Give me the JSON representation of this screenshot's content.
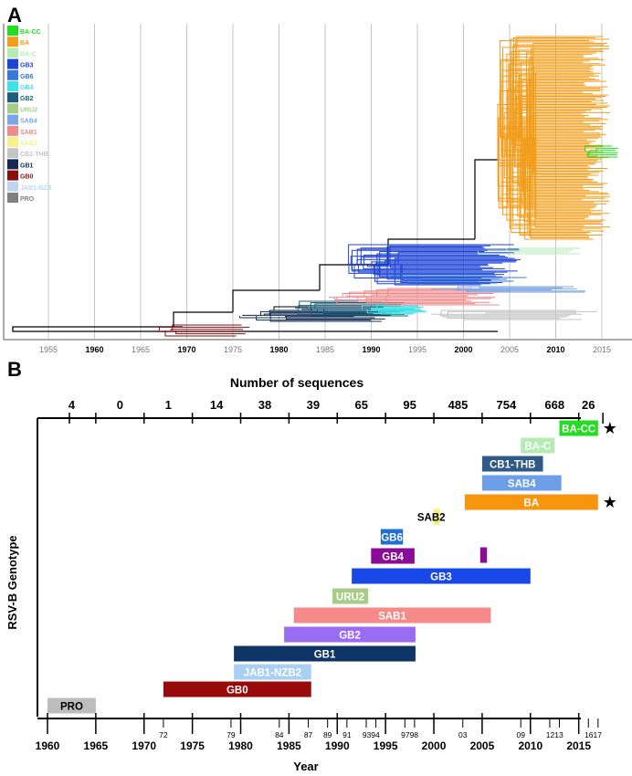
{
  "panel_a": {
    "letter": "A",
    "legend": [
      {
        "label": "BA-CC",
        "color": "#22dd22"
      },
      {
        "label": "BA",
        "color": "#f29d1c"
      },
      {
        "label": "BA-C",
        "color": "#b4ecb4"
      },
      {
        "label": "GB3",
        "color": "#1f44d6"
      },
      {
        "label": "GB6",
        "color": "#3a78d8"
      },
      {
        "label": "GB4",
        "color": "#3fe2e8"
      },
      {
        "label": "GB2",
        "color": "#1f5c78"
      },
      {
        "label": "URU2",
        "color": "#a7cc88"
      },
      {
        "label": "SAB4",
        "color": "#7aa6e6"
      },
      {
        "label": "SAB1",
        "color": "#ee8a8a"
      },
      {
        "label": "SAB2",
        "color": "#f6f08a"
      },
      {
        "label": "CB1-THB",
        "color": "#c4c4c4"
      },
      {
        "label": "GB1",
        "color": "#142a55"
      },
      {
        "label": "GB0",
        "color": "#8a1010"
      },
      {
        "label": "JAB1-NZB",
        "color": "#bcd6f2"
      },
      {
        "label": "PRO",
        "color": "#808080"
      }
    ],
    "axis_ticks": [
      "1955",
      "1960",
      "1965",
      "1970",
      "1975",
      "1980",
      "1985",
      "1990",
      "1995",
      "2000",
      "2005",
      "2010",
      "2015"
    ],
    "bold_ticks": [
      "1960",
      "1970",
      "1980",
      "1990",
      "2000",
      "2010"
    ]
  },
  "chart_data": {
    "type": "bar",
    "letter": "B",
    "top_axis_title": "Number of sequences",
    "top_axis_counts": [
      "4",
      "0",
      "1",
      "14",
      "38",
      "39",
      "65",
      "95",
      "485",
      "754",
      "668",
      "26"
    ],
    "ylabel": "RSV-B Genotype",
    "xlabel": "Year",
    "xlim": [
      1959,
      2017
    ],
    "major_ticks": [
      "1960",
      "1965",
      "1970",
      "1975",
      "1980",
      "1985",
      "1990",
      "1995",
      "2000",
      "2005",
      "2010",
      "2015"
    ],
    "minor_ticks": [
      "72",
      "79",
      "84",
      "87",
      "89",
      "91",
      "9394",
      "9798",
      "03",
      "09",
      "1213",
      "1617"
    ],
    "genotypes": [
      {
        "label": "BA-CC",
        "start": 2013,
        "end": 2017,
        "color": "#22dd22",
        "text_color": "#ffffff",
        "star": "★"
      },
      {
        "label": "BA-C",
        "start": 2009,
        "end": 2012.5,
        "color": "#b4ecb4",
        "text_color": "#ffffff"
      },
      {
        "label": "CB1-THB",
        "start": 2005,
        "end": 2011.3,
        "color": "#2f5a88",
        "text_color": "#ffffff"
      },
      {
        "label": "SAB4",
        "start": 2005,
        "end": 2013.2,
        "color": "#6d9ee8",
        "text_color": "#ffffff"
      },
      {
        "label": "BA",
        "start": 2003.2,
        "end": 2017,
        "color": "#f7950f",
        "text_color": "#ffffff",
        "star": "★"
      },
      {
        "label": "SAB2",
        "start": 2000,
        "end": 2000.6,
        "color": "#f6ef6a",
        "text_color": "#000000",
        "label_outside": true
      },
      {
        "label": "GB6",
        "start": 1994.5,
        "end": 1996.8,
        "color": "#1f6fd6",
        "text_color": "#ffffff"
      },
      {
        "label": "GB4",
        "start": 1993.5,
        "end": 1998,
        "color": "#8a0c96",
        "text_color": "#ffffff"
      },
      {
        "label": "",
        "start": 2004.8,
        "end": 2005.5,
        "color": "#8a0c96",
        "text_color": "#ffffff"
      },
      {
        "label": "GB3",
        "start": 1991.5,
        "end": 2010,
        "color": "#1848e8",
        "text_color": "#ffffff"
      },
      {
        "label": "URU2",
        "start": 1989.5,
        "end": 1993.2,
        "color": "#a7cc88",
        "text_color": "#ffffff"
      },
      {
        "label": "SAB1",
        "start": 1985.5,
        "end": 2005.9,
        "color": "#f58a88",
        "text_color": "#ffffff"
      },
      {
        "label": "GB2",
        "start": 1984.5,
        "end": 1998.1,
        "color": "#9a6cf4",
        "text_color": "#ffffff"
      },
      {
        "label": "GB1",
        "start": 1979.3,
        "end": 1998.1,
        "color": "#0f3566",
        "text_color": "#ffffff"
      },
      {
        "label": "JAB1-NZB2",
        "start": 1979.3,
        "end": 1987.3,
        "color": "#a9d0f2",
        "text_color": "#ffffff"
      },
      {
        "label": "GB0",
        "start": 1972,
        "end": 1987.3,
        "color": "#9a0a0a",
        "text_color": "#ffffff"
      },
      {
        "label": "PRO",
        "start": 1960,
        "end": 1965,
        "color": "#bdbdbd",
        "text_color": "#000000"
      }
    ]
  }
}
